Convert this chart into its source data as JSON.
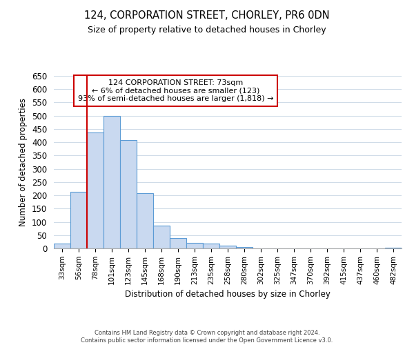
{
  "title": "124, CORPORATION STREET, CHORLEY, PR6 0DN",
  "subtitle": "Size of property relative to detached houses in Chorley",
  "xlabel": "Distribution of detached houses by size in Chorley",
  "ylabel": "Number of detached properties",
  "bin_labels": [
    "33sqm",
    "56sqm",
    "78sqm",
    "101sqm",
    "123sqm",
    "145sqm",
    "168sqm",
    "190sqm",
    "213sqm",
    "235sqm",
    "258sqm",
    "280sqm",
    "302sqm",
    "325sqm",
    "347sqm",
    "370sqm",
    "392sqm",
    "415sqm",
    "437sqm",
    "460sqm",
    "482sqm"
  ],
  "bar_heights": [
    18,
    213,
    437,
    500,
    407,
    207,
    87,
    40,
    22,
    18,
    10,
    4,
    0,
    0,
    0,
    0,
    0,
    0,
    0,
    0,
    3
  ],
  "bar_color": "#c9d9f0",
  "bar_edge_color": "#5b9bd5",
  "vline_x_index": 1.5,
  "vline_color": "#cc0000",
  "annotation_title": "124 CORPORATION STREET: 73sqm",
  "annotation_line1": "← 6% of detached houses are smaller (123)",
  "annotation_line2": "93% of semi-detached houses are larger (1,818) →",
  "annotation_box_color": "#ffffff",
  "annotation_box_edge_color": "#cc0000",
  "ylim": [
    0,
    650
  ],
  "yticks": [
    0,
    50,
    100,
    150,
    200,
    250,
    300,
    350,
    400,
    450,
    500,
    550,
    600,
    650
  ],
  "footer_line1": "Contains HM Land Registry data © Crown copyright and database right 2024.",
  "footer_line2": "Contains public sector information licensed under the Open Government Licence v3.0.",
  "bg_color": "#ffffff",
  "grid_color": "#d0dce8"
}
